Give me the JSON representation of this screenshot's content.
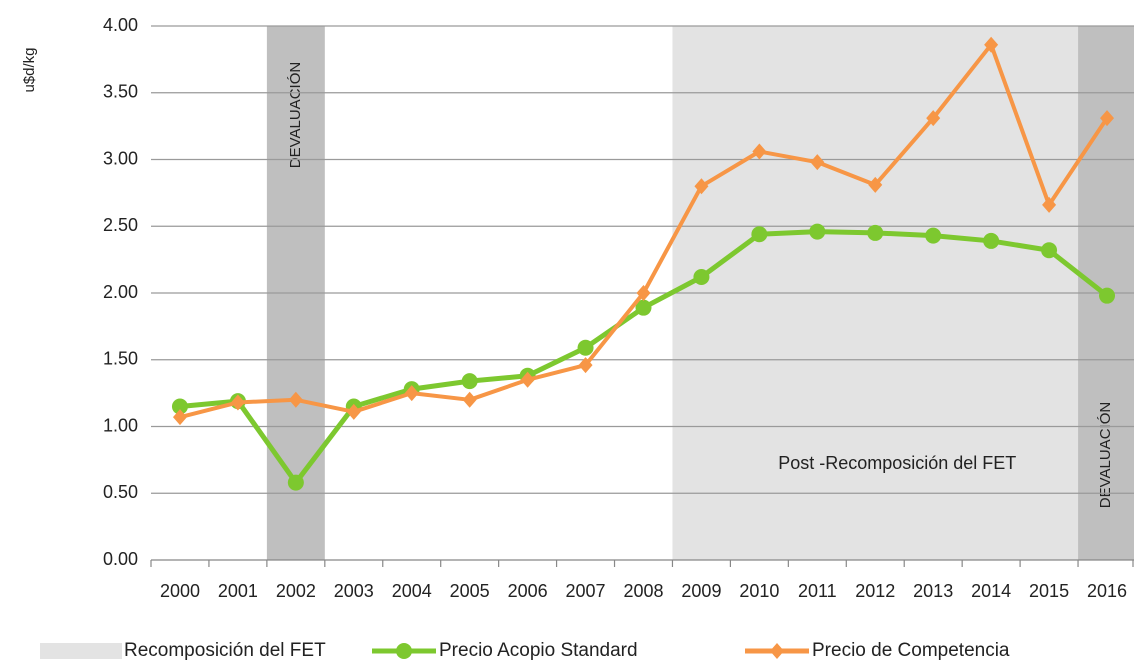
{
  "chart_data": {
    "type": "line",
    "y_label": "u$d/kg",
    "categories": [
      "2000",
      "2001",
      "2002",
      "2003",
      "2004",
      "2005",
      "2006",
      "2007",
      "2008",
      "2009",
      "2010",
      "2011",
      "2012",
      "2013",
      "2014",
      "2015",
      "2016"
    ],
    "series": [
      {
        "name": "Precio Acopio Standard",
        "color": "#7dc82f",
        "marker": "circle",
        "values": [
          1.15,
          1.19,
          0.58,
          1.15,
          1.28,
          1.34,
          1.38,
          1.59,
          1.89,
          2.12,
          2.44,
          2.46,
          2.45,
          2.43,
          2.39,
          2.32,
          1.98
        ]
      },
      {
        "name": "Precio de Competencia",
        "color": "#f79646",
        "marker": "diamond",
        "values": [
          1.07,
          1.18,
          1.2,
          1.11,
          1.25,
          1.2,
          1.35,
          1.46,
          2.0,
          2.8,
          3.06,
          2.98,
          2.81,
          3.31,
          3.86,
          2.66,
          3.31
        ]
      }
    ],
    "shaded": [
      {
        "label": "DEVALUACIÓN",
        "from": "2002",
        "to": "2002",
        "color": "#bfbfbf",
        "text_rotated": true
      },
      {
        "name": "Recomposición del FET",
        "label": "Post -Recomposición del FET",
        "from": "2009",
        "to": "2015",
        "color": "#e3e3e3",
        "text_rotated": false
      },
      {
        "label": "DEVALUACIÓN",
        "from": "2016",
        "to": "2016",
        "color": "#bfbfbf",
        "text_rotated": true
      }
    ],
    "ylim": [
      0,
      4
    ],
    "yticks": [
      {
        "value": 0,
        "label": "0.00"
      },
      {
        "value": 0.5,
        "label": "0.50"
      },
      {
        "value": 1,
        "label": "1.00"
      },
      {
        "value": 1.5,
        "label": "1.50"
      },
      {
        "value": 2,
        "label": "2.00"
      },
      {
        "value": 2.5,
        "label": "2.50"
      },
      {
        "value": 3,
        "label": "3.00"
      },
      {
        "value": 3.5,
        "label": "3.50"
      },
      {
        "value": 4,
        "label": "4.00"
      }
    ],
    "grid": true
  }
}
